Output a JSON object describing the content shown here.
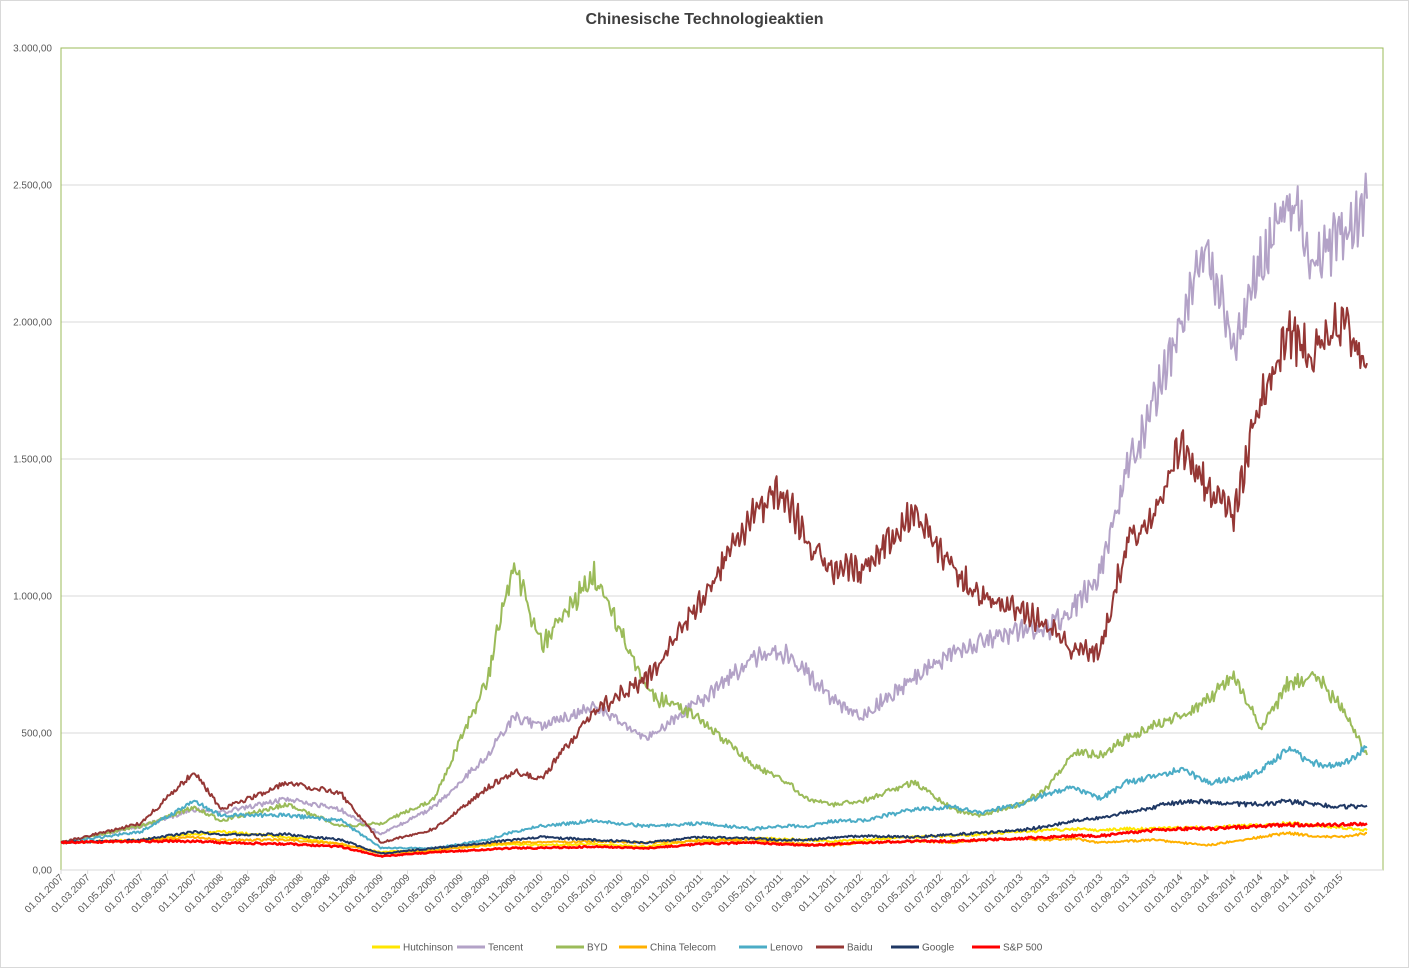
{
  "chart_data": {
    "type": "line",
    "title": "Chinesische Technologieaktien",
    "xlabel": "",
    "ylabel": "",
    "ylim": [
      0,
      3000
    ],
    "y_ticks": [
      "0,00",
      "500,00",
      "1.000,00",
      "1.500,00",
      "2.000,00",
      "2.500,00",
      "3.000,00"
    ],
    "y_tick_values": [
      0,
      500,
      1000,
      1500,
      2000,
      2500,
      3000
    ],
    "x_ticks": [
      "01.01.2007",
      "01.03.2007",
      "01.05.2007",
      "01.07.2007",
      "01.09.2007",
      "01.11.2007",
      "01.01.2008",
      "01.03.2008",
      "01.05.2008",
      "01.07.2008",
      "01.09.2008",
      "01.11.2008",
      "01.01.2009",
      "01.03.2009",
      "01.05.2009",
      "01.07.2009",
      "01.09.2009",
      "01.11.2009",
      "01.01.2010",
      "01.03.2010",
      "01.05.2010",
      "01.07.2010",
      "01.09.2010",
      "01.11.2010",
      "01.01.2011",
      "01.03.2011",
      "01.05.2011",
      "01.07.2011",
      "01.09.2011",
      "01.11.2011",
      "01.01.2012",
      "01.03.2012",
      "01.05.2012",
      "01.07.2012",
      "01.09.2012",
      "01.11.2012",
      "01.01.2013",
      "01.03.2013",
      "01.05.2013",
      "01.07.2013",
      "01.09.2013",
      "01.11.2013",
      "01.01.2014",
      "01.03.2014",
      "01.05.2014",
      "01.07.2014",
      "01.09.2014",
      "01.11.2014",
      "01.01.2015"
    ],
    "x": [
      "2007-01",
      "2007-07",
      "2007-11",
      "2008-01",
      "2008-06",
      "2008-10",
      "2009-01",
      "2009-05",
      "2009-09",
      "2009-11",
      "2010-01",
      "2010-05",
      "2010-09",
      "2011-01",
      "2011-05",
      "2011-07",
      "2011-09",
      "2011-11",
      "2012-01",
      "2012-05",
      "2012-08",
      "2012-10",
      "2013-01",
      "2013-03",
      "2013-05",
      "2013-07",
      "2013-09",
      "2013-11",
      "2014-01",
      "2014-03",
      "2014-05",
      "2014-07",
      "2014-09",
      "2014-11",
      "2015-01",
      "2015-03"
    ],
    "grid": true,
    "legend_position": "bottom",
    "series": [
      {
        "name": "Hutchinson",
        "color": "#ffe600",
        "values": [
          100,
          110,
          130,
          140,
          120,
          95,
          65,
          75,
          90,
          95,
          90,
          95,
          85,
          110,
          115,
          115,
          110,
          105,
          110,
          120,
          125,
          130,
          140,
          145,
          150,
          145,
          150,
          150,
          155,
          155,
          160,
          165,
          170,
          165,
          155,
          145
        ]
      },
      {
        "name": "Tencent",
        "color": "#b3a2c7",
        "values": [
          100,
          160,
          220,
          210,
          260,
          220,
          130,
          230,
          420,
          560,
          520,
          600,
          480,
          620,
          770,
          800,
          720,
          620,
          560,
          700,
          800,
          830,
          880,
          880,
          960,
          1080,
          1450,
          1700,
          2000,
          2300,
          1900,
          2200,
          2450,
          2250,
          2300,
          2450
        ]
      },
      {
        "name": "BYD",
        "color": "#9bbb59",
        "values": [
          100,
          160,
          230,
          180,
          240,
          160,
          170,
          260,
          700,
          1130,
          820,
          1080,
          650,
          550,
          380,
          340,
          260,
          240,
          250,
          320,
          220,
          200,
          240,
          300,
          430,
          420,
          480,
          530,
          560,
          620,
          710,
          520,
          670,
          720,
          600,
          420
        ]
      },
      {
        "name": "China Telecom",
        "color": "#ffb000",
        "values": [
          100,
          105,
          120,
          110,
          110,
          95,
          60,
          70,
          95,
          100,
          100,
          105,
          100,
          105,
          110,
          100,
          95,
          90,
          100,
          105,
          100,
          110,
          115,
          110,
          115,
          100,
          105,
          110,
          100,
          90,
          105,
          120,
          135,
          125,
          120,
          135
        ]
      },
      {
        "name": "Lenovo",
        "color": "#4bacc6",
        "values": [
          100,
          140,
          250,
          200,
          200,
          180,
          80,
          80,
          110,
          140,
          160,
          180,
          160,
          170,
          150,
          160,
          160,
          180,
          180,
          220,
          230,
          210,
          240,
          280,
          300,
          260,
          320,
          340,
          370,
          320,
          330,
          360,
          440,
          390,
          380,
          450
        ]
      },
      {
        "name": "Baidu",
        "color": "#953735",
        "values": [
          100,
          170,
          360,
          220,
          320,
          280,
          100,
          150,
          300,
          360,
          330,
          580,
          700,
          980,
          1300,
          1400,
          1200,
          1100,
          1100,
          1300,
          1100,
          1000,
          950,
          900,
          800,
          800,
          1200,
          1300,
          1550,
          1400,
          1300,
          1700,
          1950,
          1900,
          2000,
          1850
        ]
      },
      {
        "name": "Google",
        "color": "#1f3864",
        "values": [
          100,
          110,
          140,
          130,
          130,
          110,
          60,
          80,
          100,
          110,
          120,
          110,
          100,
          120,
          115,
          110,
          110,
          120,
          125,
          120,
          130,
          135,
          145,
          160,
          180,
          190,
          210,
          230,
          250,
          250,
          240,
          240,
          250,
          240,
          230,
          235
        ]
      },
      {
        "name": "S&P 500",
        "color": "#ff0000",
        "values": [
          100,
          105,
          105,
          100,
          95,
          85,
          50,
          65,
          75,
          80,
          80,
          85,
          80,
          95,
          100,
          95,
          90,
          95,
          100,
          105,
          105,
          110,
          115,
          120,
          125,
          125,
          135,
          145,
          150,
          150,
          155,
          160,
          165,
          165,
          165,
          170
        ]
      }
    ]
  }
}
